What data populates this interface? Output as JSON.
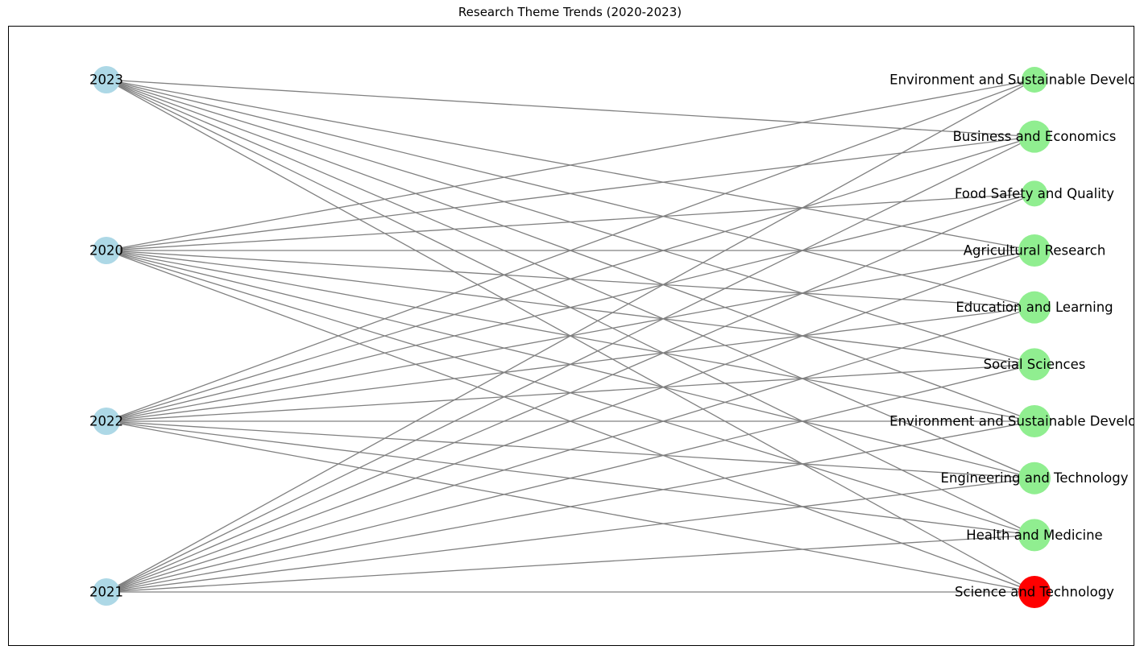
{
  "chart_data": {
    "type": "network",
    "title": "Research Theme Trends (2020-2023)",
    "colors": {
      "year": "#add8e6",
      "theme": "#90ee90",
      "highlight": "#ff0000",
      "edge": "#808080",
      "frame": "#000000"
    },
    "year_nodes": [
      "2023",
      "2020",
      "2022",
      "2021"
    ],
    "theme_nodes": [
      {
        "label": "Environment and Sustainable Development",
        "size": "small"
      },
      {
        "label": "Business and Economics",
        "size": "large"
      },
      {
        "label": "Food Safety and Quality",
        "size": "small"
      },
      {
        "label": "Agricultural Research",
        "size": "large"
      },
      {
        "label": "Education and Learning",
        "size": "large"
      },
      {
        "label": "Social Sciences",
        "size": "large"
      },
      {
        "label": "Environment and Sustainable Development",
        "size": "large"
      },
      {
        "label": "Engineering and Technology",
        "size": "large"
      },
      {
        "label": "Health and Medicine",
        "size": "large"
      },
      {
        "label": "Science and Technology",
        "size": "large",
        "highlight": true
      }
    ],
    "edges": [
      [
        "2023",
        1
      ],
      [
        "2023",
        3
      ],
      [
        "2023",
        4
      ],
      [
        "2023",
        5
      ],
      [
        "2023",
        6
      ],
      [
        "2023",
        7
      ],
      [
        "2023",
        8
      ],
      [
        "2023",
        9
      ],
      [
        "2020",
        0
      ],
      [
        "2020",
        1
      ],
      [
        "2020",
        2
      ],
      [
        "2020",
        3
      ],
      [
        "2020",
        4
      ],
      [
        "2020",
        5
      ],
      [
        "2020",
        6
      ],
      [
        "2020",
        7
      ],
      [
        "2020",
        8
      ],
      [
        "2020",
        9
      ],
      [
        "2022",
        0
      ],
      [
        "2022",
        1
      ],
      [
        "2022",
        2
      ],
      [
        "2022",
        3
      ],
      [
        "2022",
        4
      ],
      [
        "2022",
        5
      ],
      [
        "2022",
        6
      ],
      [
        "2022",
        7
      ],
      [
        "2022",
        8
      ],
      [
        "2022",
        9
      ],
      [
        "2021",
        0
      ],
      [
        "2021",
        1
      ],
      [
        "2021",
        2
      ],
      [
        "2021",
        3
      ],
      [
        "2021",
        4
      ],
      [
        "2021",
        5
      ],
      [
        "2021",
        6
      ],
      [
        "2021",
        7
      ],
      [
        "2021",
        8
      ],
      [
        "2021",
        9
      ]
    ]
  }
}
